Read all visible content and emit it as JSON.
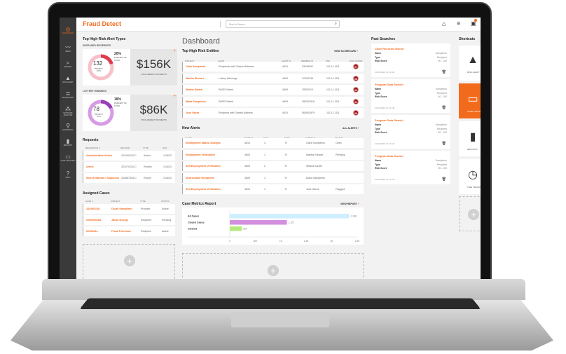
{
  "app": {
    "title": "Fraud Detect",
    "search_placeholder": "Start a Search",
    "page_title": "Dashboard"
  },
  "sidebar": [
    {
      "label": "Dashboard",
      "icon": "dashboard-icon",
      "glyph": "◎"
    },
    {
      "label": "Ideas",
      "icon": "trend-icon",
      "glyph": "〰"
    },
    {
      "label": "Search",
      "icon": "search-icon",
      "glyph": "⌕"
    },
    {
      "label": "Risk Alert",
      "icon": "warning-icon",
      "glyph": "▲"
    },
    {
      "label": "Scorecard",
      "icon": "scorecard-icon",
      "glyph": "≣"
    },
    {
      "label": "Network Analysis",
      "icon": "network-icon",
      "glyph": "⁂"
    },
    {
      "label": "Geospatial",
      "icon": "map-pin-icon",
      "glyph": "⚲"
    },
    {
      "label": "Reports",
      "icon": "bar-chart-icon",
      "glyph": "▮"
    },
    {
      "label": "Case Tracking",
      "icon": "folder-icon",
      "glyph": "▭"
    },
    {
      "label": "Help",
      "icon": "help-icon",
      "glyph": "?"
    }
  ],
  "alert_types": {
    "title": "Top High Risk Alert Types",
    "items": [
      {
        "label": "Deceased Recipients",
        "hits": "132",
        "hits_label": "Priority Hits",
        "percent": "20%",
        "percent_label": "Percent of Total",
        "fraction": 0.2,
        "amount": "$156K",
        "amount_label": "Total Benefit Payments",
        "ring": "#f7c1c9",
        "arc": "#e03a4e"
      },
      {
        "label": "Lottery Winnings",
        "hits": "78",
        "hits_label": "Priority Hits",
        "percent": "18%",
        "percent_label": "Percent of Total",
        "fraction": 0.18,
        "amount": "$86K",
        "amount_label": "Total Benefit Payments",
        "ring": "#d79be6",
        "arc": "#9a3fb3"
      }
    ]
  },
  "requests": {
    "title": "Requests",
    "headers": [
      "Regarding ▾",
      "Record",
      "Type",
      "Due"
    ],
    "rows": [
      [
        "Administrative Action",
        "151000130-C",
        "Action",
        "1/16/22"
      ],
      [
        "Arrest",
        "251070130-C",
        "Review",
        "1/16/22"
      ],
      [
        "Search Warrant / Subpoena",
        "234567535-C",
        "Report",
        "1/16/22"
      ]
    ]
  },
  "cases": {
    "title": "Assigned Cases",
    "headers": [
      "Case ▾",
      "Subject",
      "Type",
      "Status"
    ],
    "rows": [
      [
        "181000130L",
        "Oscar Sampleton",
        "Provider",
        "Active"
      ],
      [
        "2910000340L",
        "Jacob George",
        "Recipient",
        "Pending"
      ],
      [
        "2019349-L",
        "Frank Francisco",
        "Recipient",
        "Active"
      ]
    ]
  },
  "entities": {
    "title": "Top High Risk Entities",
    "link": "View Scorecard",
    "headers": [
      "Subject",
      "Alert",
      "Alert ID",
      "Member ID",
      "SSN",
      "Risk Score"
    ],
    "rows": [
      [
        "Clark Sampleton",
        "Recipients with Shared Address",
        "4610",
        "03548392",
        "111-11-1111",
        "97"
      ],
      [
        "Martha Stewart",
        "Lottery Winnings",
        "4604",
        "12394739",
        "111-11-1111",
        "96"
      ],
      [
        "Witana Sarath",
        "PARIS Match",
        "4609",
        "78392019",
        "111-11-1111",
        "93"
      ],
      [
        "Maria Sampleton",
        "PARIS Match",
        "4609",
        "389302918",
        "111-11-1111",
        "92"
      ],
      [
        "Jose Garza",
        "Recipient with Shared Address",
        "4610",
        "583902879",
        "111-11-1111",
        "90"
      ]
    ]
  },
  "alerts": {
    "title": "New Alerts",
    "link": "All Alerts",
    "headers": [
      "Alert",
      "Alert ID",
      "Tier",
      "Type",
      "Subject",
      "Status"
    ],
    "rows": [
      [
        "Employment Status Changes",
        "4610",
        "3",
        "R",
        "Clark Sampleton",
        "Open"
      ],
      [
        "Employment Verification",
        "4604",
        "1",
        "R",
        "Martha Stewart",
        "Pending"
      ],
      [
        "Self-Employment Verification",
        "4609",
        "2",
        "R",
        "Witana Sarath",
        ""
      ],
      [
        "Incarcerated Recipients",
        "4609",
        "1",
        "R",
        "Maria Sampleton",
        ""
      ],
      [
        "Self-Employment Verification",
        "4610",
        "1",
        "R",
        "Jose Garza",
        "Flagged"
      ]
    ]
  },
  "chart_data": {
    "type": "bar",
    "orientation": "horizontal",
    "title": "Case Metrics Report",
    "link": "View Report",
    "categories": [
      "All Cases",
      "Closed Cases",
      "Cleared"
    ],
    "values": [
      2348,
      1120,
      234
    ],
    "labels": [
      "2,348",
      "1,120",
      "234"
    ],
    "colors": [
      "#cfefff",
      "#d48fe0",
      "#b5e97a"
    ],
    "xlim": [
      0,
      2500
    ],
    "ticks": [
      "0",
      "500",
      "1K",
      "1.5K",
      "2K",
      "2.5K"
    ],
    "tick_values": [
      0,
      500,
      1000,
      1500,
      2000,
      2500
    ]
  },
  "past_searches": {
    "title": "Past Searches",
    "keys": [
      "Name",
      "Type",
      "Risk Score"
    ],
    "items": [
      {
        "title": "Clear Records Search",
        "values": [
          "Sampleton",
          "Recipient",
          "50 - 100"
        ],
        "date": "10/24/2020 11:31 AM"
      },
      {
        "title": "Program Data Search",
        "values": [
          "Sampleton",
          "Recipient",
          "50 - 100"
        ],
        "date": "10/24/2020 11:31 AM"
      },
      {
        "title": "Program Data Search",
        "values": [
          "Sampleton",
          "Recipient",
          "50 - 100"
        ],
        "date": "10/24/2020 11:31 AM"
      },
      {
        "title": "Program Data Search",
        "values": [
          "Sampleton",
          "Recipient",
          "50 - 100"
        ],
        "date": "10/24/2020 11:31 AM"
      }
    ]
  },
  "shortcuts": {
    "title": "Shortcuts",
    "items": [
      {
        "label": "Risk Alert",
        "glyph": "▲",
        "icon": "warning-icon"
      },
      {
        "label": "Case Tracking",
        "glyph": "▭",
        "icon": "folder-icon",
        "active": true
      },
      {
        "label": "Reports",
        "glyph": "▮",
        "icon": "bar-chart-icon"
      },
      {
        "label": "Time Tracking",
        "glyph": "◷",
        "icon": "clock-icon"
      }
    ]
  },
  "accent": "#f26b1d"
}
